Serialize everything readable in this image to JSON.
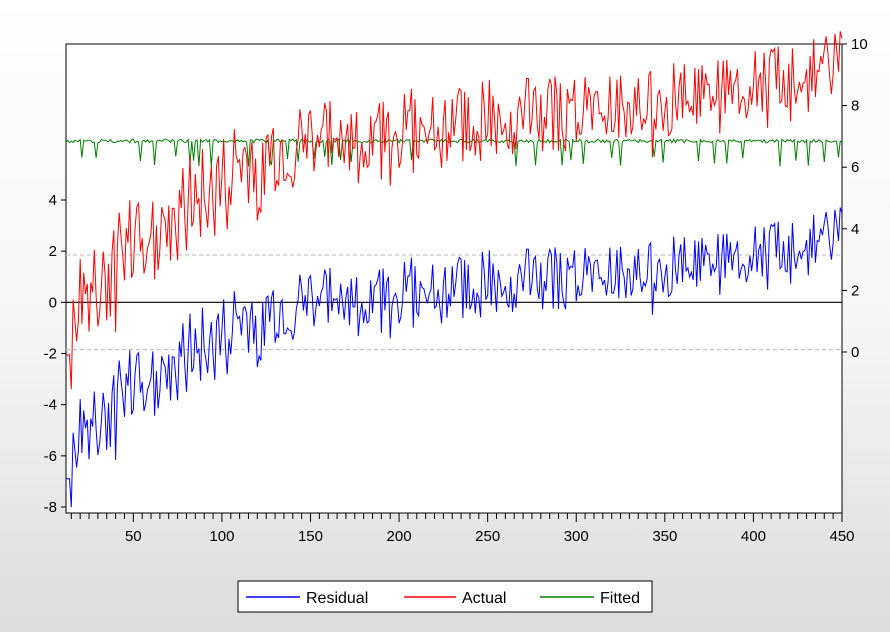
{
  "chart_data": {
    "type": "line",
    "title": "",
    "xlabel": "",
    "ylabel": "",
    "x_range": [
      12,
      450
    ],
    "x_ticks": [
      50,
      100,
      150,
      200,
      250,
      300,
      350,
      400,
      450
    ],
    "left_axis": {
      "range": [
        -8,
        6
      ],
      "ticks": [
        -8,
        -6,
        -4,
        -2,
        0,
        2,
        4
      ],
      "applies_to": [
        "Residual"
      ]
    },
    "right_axis": {
      "range": [
        -2,
        10
      ],
      "ticks": [
        0,
        2,
        4,
        6,
        8,
        10
      ],
      "applies_to": [
        "Actual",
        "Fitted"
      ]
    },
    "reference_lines": {
      "zero_line": 0,
      "dashed_band": [
        -1.85,
        1.85
      ]
    },
    "legend_position": "bottom-center",
    "grid": false,
    "series_trend": {
      "Residual": {
        "x": [
          12,
          50,
          100,
          150,
          200,
          250,
          300,
          350,
          400,
          450
        ],
        "y": [
          -6.0,
          -3.3,
          -1.3,
          -0.2,
          0.3,
          0.7,
          1.0,
          1.4,
          1.9,
          2.8
        ],
        "noise_amplitude": 1.4
      },
      "Actual": {
        "x": [
          12,
          50,
          100,
          150,
          200,
          250,
          300,
          350,
          400,
          450
        ],
        "y": [
          0.8,
          3.5,
          5.5,
          6.6,
          7.1,
          7.5,
          7.8,
          8.2,
          8.7,
          9.5
        ],
        "noise_amplitude": 1.4
      },
      "Fitted": {
        "x": [
          12,
          450
        ],
        "y": [
          6.85,
          6.85
        ],
        "dips_to": 6.0
      }
    },
    "series": [
      {
        "name": "Residual",
        "color": "#0000ff"
      },
      {
        "name": "Actual",
        "color": "#ff0000"
      },
      {
        "name": "Fitted",
        "color": "#008000"
      }
    ]
  }
}
